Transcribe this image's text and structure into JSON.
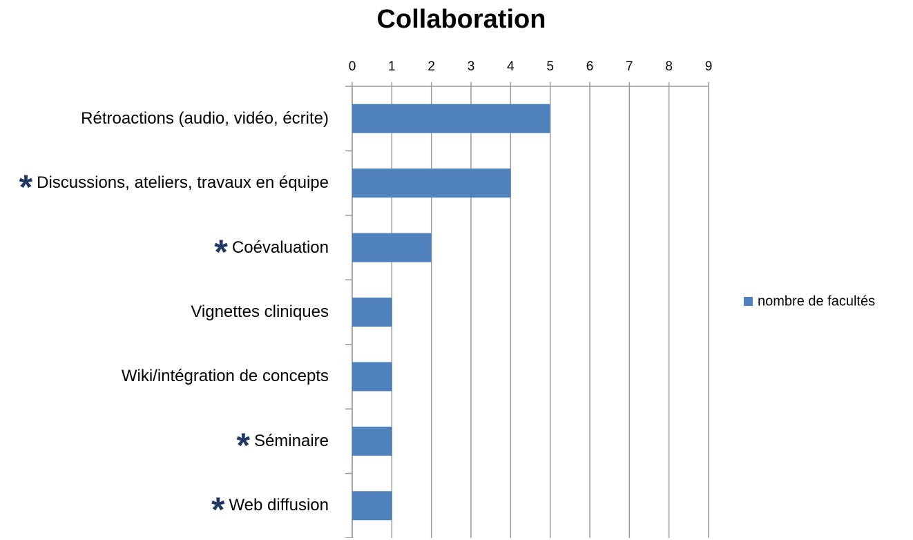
{
  "chart_data": {
    "type": "bar",
    "orientation": "horizontal",
    "title": "Collaboration",
    "categories": [
      "Rétroactions (audio, vidéo, écrite)",
      "Discussions, ateliers, travaux en équipe",
      "Coévaluation",
      "Vignettes cliniques",
      "Wiki/intégration de concepts",
      "Séminaire",
      "Web diffusion"
    ],
    "series": [
      {
        "name": "nombre de facultés",
        "color": "#4f81bd",
        "values": [
          5,
          4,
          2,
          1,
          1,
          1,
          1
        ]
      }
    ],
    "annotation_mark": "*",
    "starred": [
      false,
      true,
      true,
      false,
      false,
      true,
      true
    ],
    "xlim": [
      0,
      9
    ],
    "xticks": [
      0,
      1,
      2,
      3,
      4,
      5,
      6,
      7,
      8,
      9
    ],
    "grid": true,
    "legend": "right"
  }
}
